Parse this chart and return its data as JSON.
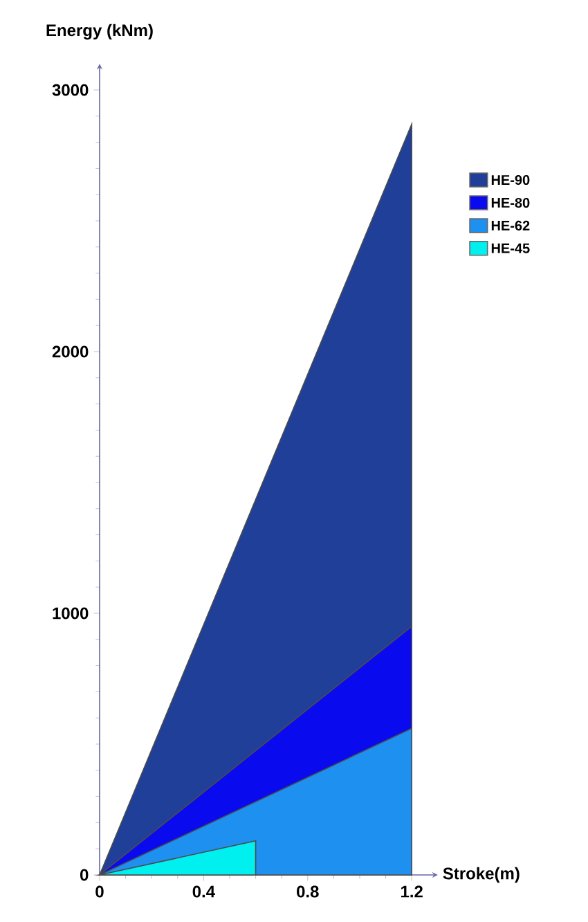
{
  "chart_data": {
    "type": "area",
    "xlabel": "Stroke(m)",
    "ylabel": "Energy (kNm)",
    "xlim": [
      0,
      1.3
    ],
    "ylim": [
      0,
      3100
    ],
    "xticks": [
      0,
      0.4,
      0.8,
      1.2
    ],
    "yticks": [
      0,
      1000,
      2000,
      3000
    ],
    "legend": "right",
    "series": [
      {
        "name": "HE-90",
        "color": "#1f3f99",
        "x": [
          0,
          1.2
        ],
        "values": [
          0,
          2870
        ]
      },
      {
        "name": "HE-80",
        "color": "#0a0aee",
        "x": [
          0,
          1.2
        ],
        "values": [
          0,
          950
        ]
      },
      {
        "name": "HE-62",
        "color": "#1e90f0",
        "x": [
          0,
          1.2
        ],
        "values": [
          0,
          560
        ]
      },
      {
        "name": "HE-45",
        "color": "#00f0f0",
        "x": [
          0,
          0.6
        ],
        "values": [
          0,
          130
        ]
      }
    ]
  }
}
